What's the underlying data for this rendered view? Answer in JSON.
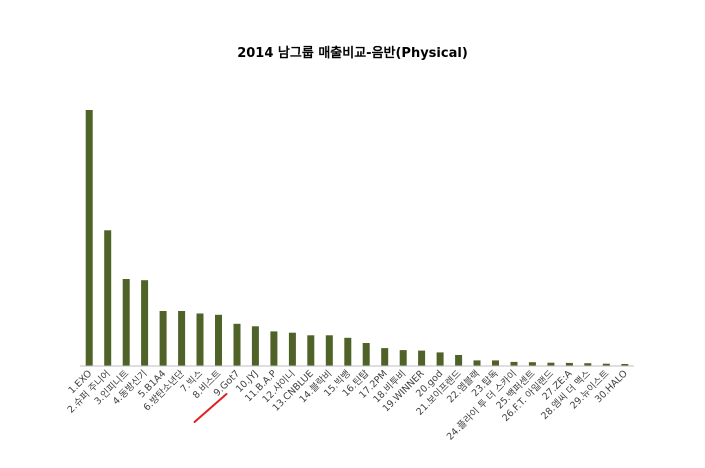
{
  "chart_data": {
    "type": "bar",
    "title": "2014 남그룹 매출비교-음반(Physical)",
    "xlabel": "",
    "ylabel": "",
    "ylim": [
      0,
      100
    ],
    "grid": false,
    "legend": "none",
    "bar_color": "#4f6228",
    "axis_color": "#bfbfbf",
    "categories": [
      "1.EXO",
      "2.슈퍼 주니어",
      "3.인피니트",
      "4.동방신기",
      "5.B1A4",
      "6.방탄소년단",
      "7.빅스",
      "8.비스트",
      "9.Got7",
      "10.JYJ",
      "11.B.A.P",
      "12.샤이니",
      "13.CNBLUE",
      "14.블락비",
      "15.빅뱅",
      "16.틴탑",
      "17.2PM",
      "18.비투비",
      "19.WINNER",
      "20.god",
      "21.보이프렌드",
      "22.엠블랙",
      "23.탑독",
      "24.플라이 투 더 스카이",
      "25.백퍼센트",
      "26.F.T. 아일랜드",
      "27.ZE:A",
      "28.엠씨 더 맥스",
      "29.뉴이스트",
      "30.HALO"
    ],
    "values": [
      100,
      53,
      34,
      33.5,
      21.5,
      21.5,
      20.5,
      20,
      16.5,
      15.5,
      13.5,
      13,
      12,
      12,
      11,
      9,
      7,
      6.2,
      6,
      5.3,
      4.3,
      2.2,
      2.2,
      1.6,
      1.5,
      1.3,
      1.2,
      1.1,
      0.9,
      0.8
    ],
    "annotations": [
      {
        "type": "red-underline",
        "category": "8.비스트"
      }
    ]
  }
}
